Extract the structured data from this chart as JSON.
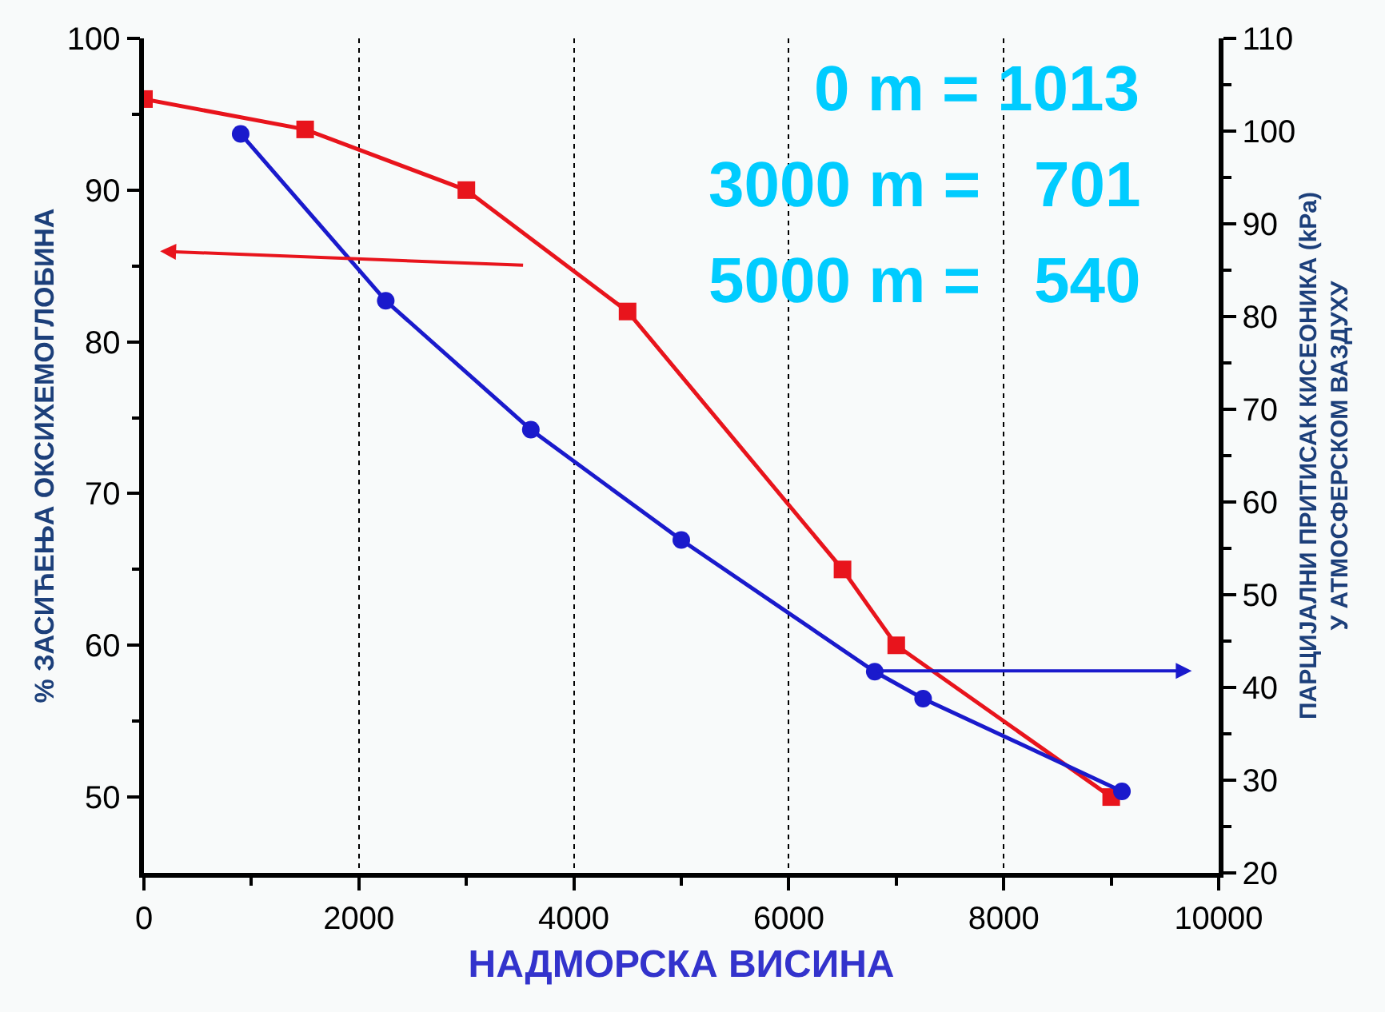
{
  "chart_data": {
    "type": "line",
    "xlabel": "НАДМОРСКА ВИСИНА",
    "ylabel": "% ЗАСИЋЕЊА ОКСИХЕМОГЛОБИНА",
    "y2label": "ПАРЦИЈАЛНИ ПРИТИСАК КИСЕОНИКА (kPa)\nУ АТМОСФЕРСКОМ ВАЗДУХУ",
    "annotations": [
      "0 m = 1013",
      "3000 m =   701",
      "5000 m =   540"
    ],
    "series": [
      {
        "color": "#e8141c",
        "marker": "square",
        "x": [
          0,
          1500,
          3000,
          4500,
          6500,
          7000,
          9000
        ],
        "values": [
          96,
          94,
          90,
          82,
          65,
          60,
          50
        ]
      },
      {
        "color": "#1a1acc",
        "marker": "circle",
        "axis": "y2",
        "x": [
          900,
          2250,
          3600,
          5000,
          6800,
          7250,
          9100
        ],
        "values": [
          99.7,
          81.7,
          67.8,
          55.9,
          41.7,
          38.8,
          28.8
        ]
      }
    ],
    "xlim": [
      0,
      10000
    ],
    "xticks": [
      0,
      2000,
      4000,
      6000,
      8000,
      10000
    ],
    "ylim": [
      45,
      100
    ],
    "yticks": [
      50,
      60,
      70,
      80,
      90,
      100
    ],
    "y2lim": [
      20,
      110
    ],
    "y2ticks": [
      20,
      30,
      40,
      50,
      60,
      70,
      80,
      90,
      100,
      110
    ],
    "grid": "x",
    "line_style": "solid"
  }
}
